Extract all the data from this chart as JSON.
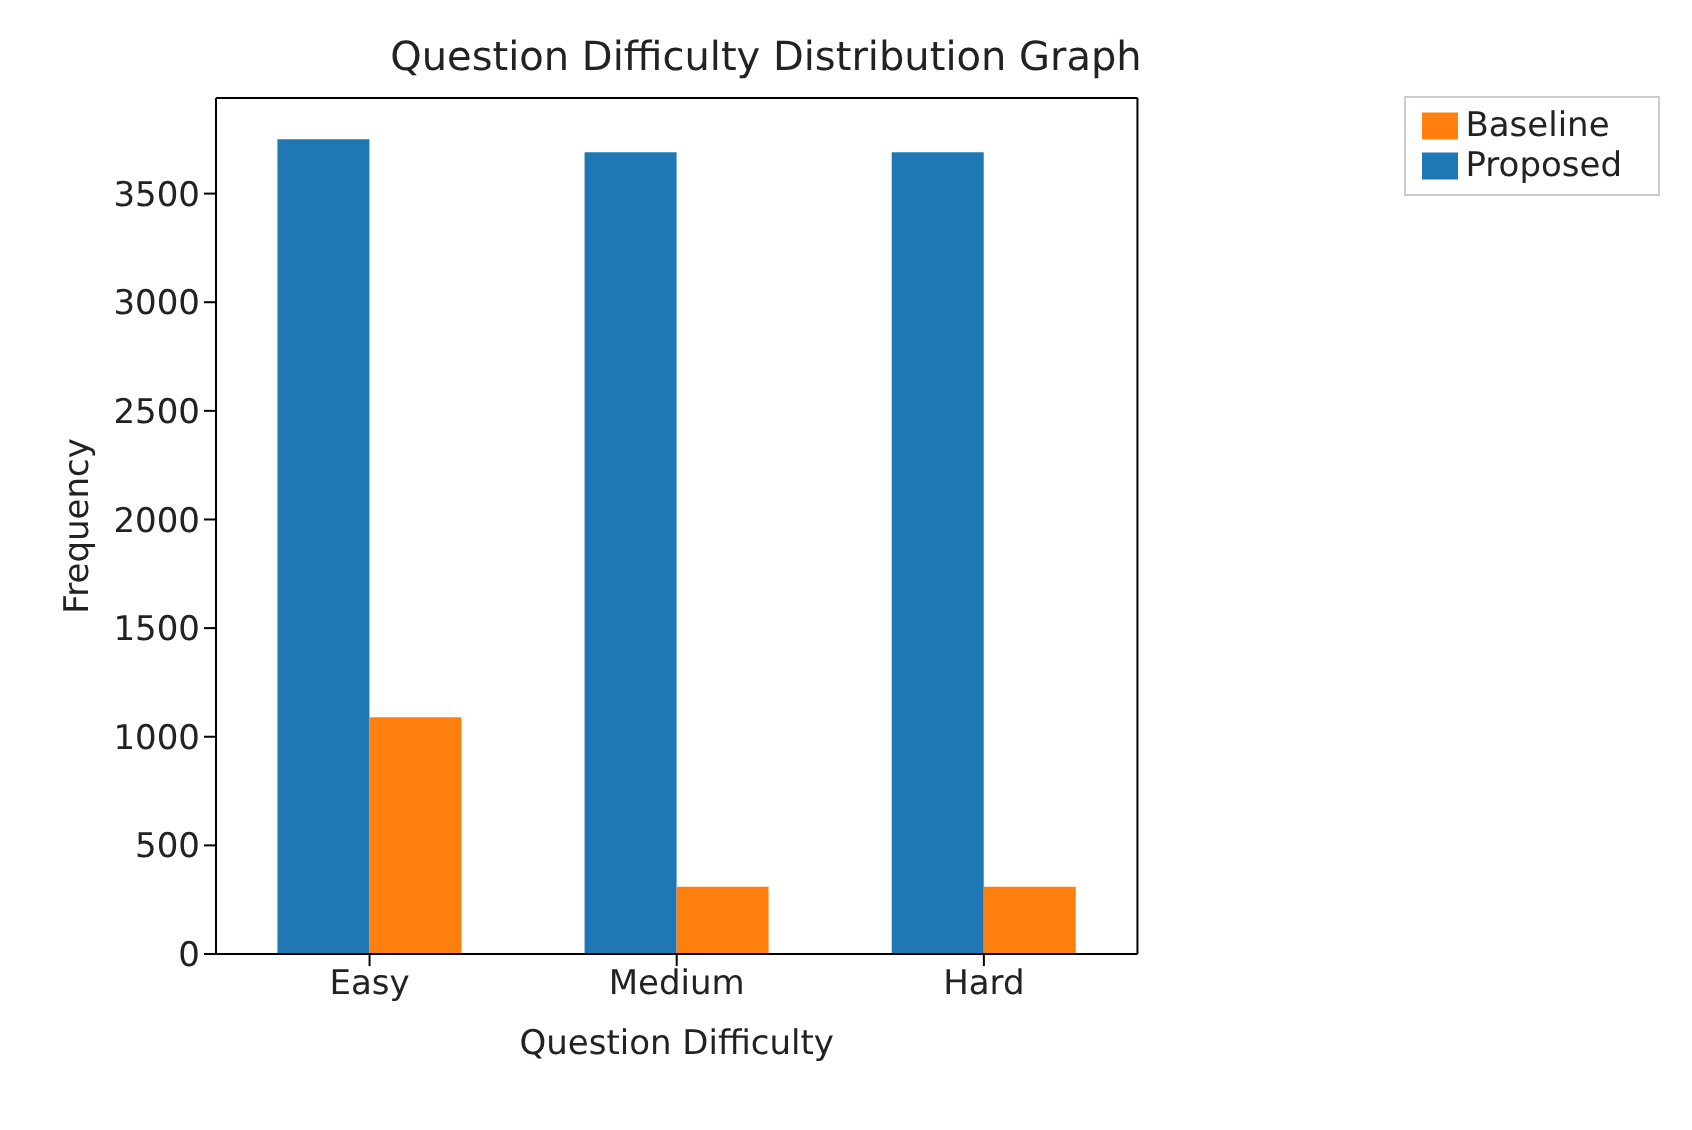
{
  "chart_data": {
    "type": "bar",
    "title": "Question Difficulty Distribution Graph",
    "xlabel": "Question Difficulty",
    "ylabel": "Frequency",
    "categories": [
      "Easy",
      "Medium",
      "Hard"
    ],
    "series": [
      {
        "name": "Proposed",
        "color": "#1f77b4",
        "values": [
          3750,
          3690,
          3690
        ]
      },
      {
        "name": "Baseline",
        "color": "#ff7f0e",
        "values": [
          1090,
          310,
          310
        ]
      }
    ],
    "ylim": [
      0,
      3940
    ],
    "yticks": [
      0,
      500,
      1000,
      1500,
      2000,
      2500,
      3000,
      3500
    ],
    "grid": false,
    "legend": "top right"
  }
}
